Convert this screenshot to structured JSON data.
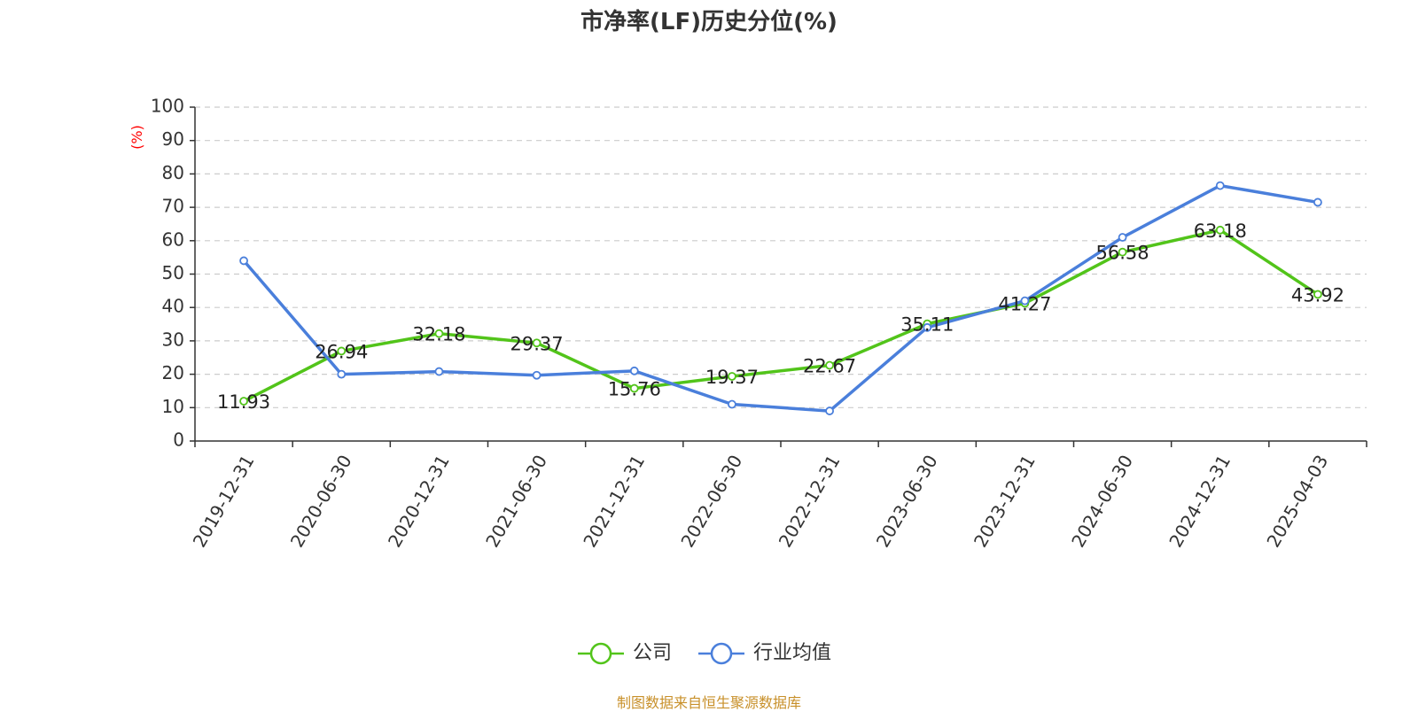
{
  "title": "市净率(LF)历史分位(%)",
  "source": "制图数据来自恒生聚源数据库",
  "chart_data": {
    "type": "line",
    "title": "市净率(LF)历史分位(%)",
    "ylabel": "(%)",
    "ylim": [
      0,
      100
    ],
    "yticks": [
      "0",
      "10",
      "20",
      "30",
      "40",
      "50",
      "60",
      "70",
      "80",
      "90",
      "100"
    ],
    "grid": true,
    "legend_position": "bottom-center",
    "categories": [
      "2019-12-31",
      "2020-06-30",
      "2020-12-31",
      "2021-06-30",
      "2021-12-31",
      "2022-06-30",
      "2022-12-31",
      "2023-06-30",
      "2023-12-31",
      "2024-06-30",
      "2024-12-31",
      "2025-04-03"
    ],
    "series": [
      {
        "name": "公司",
        "color": "#52c41a",
        "values": [
          11.93,
          26.94,
          32.18,
          29.37,
          15.76,
          19.37,
          22.67,
          35.11,
          41.27,
          56.58,
          63.18,
          43.92
        ],
        "labels": [
          "11.93",
          "26.94",
          "32.18",
          "29.37",
          "15.76",
          "19.37",
          "22.67",
          "35.11",
          "41.27",
          "56.58",
          "63.18",
          "43.92"
        ]
      },
      {
        "name": "行业均值",
        "color": "#4a7fdb",
        "values": [
          54,
          20,
          20.8,
          19.7,
          21,
          11,
          9,
          34,
          42,
          61,
          76.5,
          71.5
        ]
      }
    ]
  }
}
